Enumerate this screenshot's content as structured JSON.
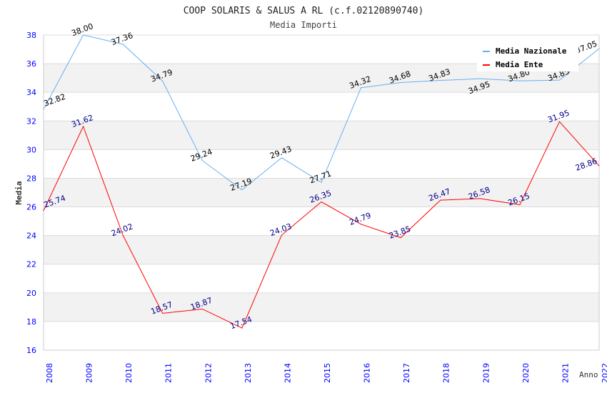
{
  "chart_data": {
    "type": "line",
    "title": "COOP SOLARIS & SALUS A RL (c.f.02120890740)",
    "subtitle": "Media Importi",
    "xlabel": "Anno",
    "ylabel": "Media",
    "ylim": [
      16,
      38
    ],
    "yticks": [
      "16",
      "18",
      "20",
      "22",
      "24",
      "26",
      "28",
      "30",
      "32",
      "34",
      "36",
      "38"
    ],
    "categories": [
      "2008",
      "2009",
      "2010",
      "2011",
      "2012",
      "2013",
      "2014",
      "2015",
      "2016",
      "2017",
      "2018",
      "2019",
      "2020",
      "2021",
      "2022"
    ],
    "legend_position": "top-right",
    "grid": true,
    "series": [
      {
        "name": "Media Nazionale",
        "color": "#6aaef0",
        "label_color": "#000000",
        "values": [
          32.82,
          38.0,
          37.36,
          34.79,
          29.24,
          27.19,
          29.43,
          27.71,
          34.32,
          34.68,
          34.83,
          34.95,
          34.8,
          34.85,
          37.05
        ]
      },
      {
        "name": "Media Ente",
        "color": "#ff0000",
        "label_color": "#00008b",
        "values": [
          25.74,
          31.62,
          24.02,
          18.57,
          18.87,
          17.54,
          24.03,
          26.35,
          24.79,
          23.85,
          26.47,
          26.58,
          26.15,
          31.95,
          28.86
        ]
      }
    ]
  }
}
